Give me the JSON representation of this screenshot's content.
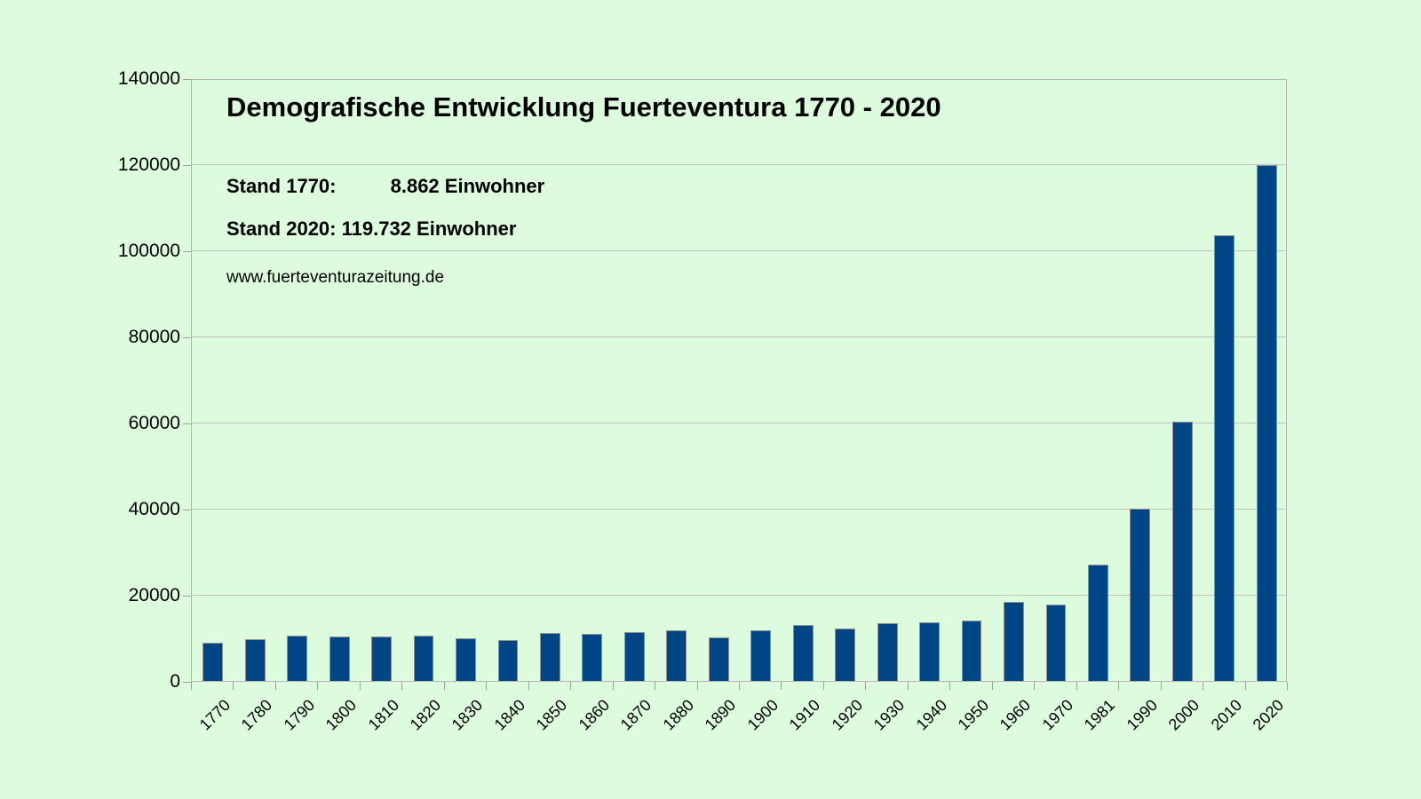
{
  "page": {
    "background_color": "#ddfcde",
    "text_color": "#000000"
  },
  "header": {
    "annotation_1770": "Stand 1770:          8.862 Einwohner",
    "annotation_2020": "Stand 2020: 119.732 Einwohner",
    "source": "www.fuerteventurazeitung.de"
  },
  "chart_data": {
    "type": "bar",
    "title": "Demografische Entwicklung Fuerteventura 1770 - 2020",
    "xlabel": "",
    "ylabel": "",
    "categories": [
      "1770",
      "1780",
      "1790",
      "1800",
      "1810",
      "1820",
      "1830",
      "1840",
      "1850",
      "1860",
      "1870",
      "1880",
      "1890",
      "1900",
      "1910",
      "1920",
      "1930",
      "1940",
      "1950",
      "1960",
      "1970",
      "1981",
      "1990",
      "2000",
      "2010",
      "2020"
    ],
    "values": [
      8862,
      9790,
      10560,
      10350,
      10410,
      10480,
      10000,
      9590,
      11150,
      11000,
      11410,
      11760,
      10010,
      11760,
      13030,
      12110,
      13500,
      13680,
      14090,
      18280,
      17800,
      27080,
      40000,
      60124,
      103492,
      119732
    ],
    "ylim": [
      0,
      140000
    ],
    "y_ticks": [
      0,
      20000,
      40000,
      60000,
      80000,
      100000,
      120000,
      140000
    ],
    "grid": true,
    "legend": "none",
    "bar_color": "#004586",
    "gridline_color": "#c2c2c2",
    "annotations": [
      "Stand 1770:          8.862 Einwohner",
      "Stand 2020: 119.732 Einwohner",
      "www.fuerteventurazeitung.de"
    ]
  }
}
